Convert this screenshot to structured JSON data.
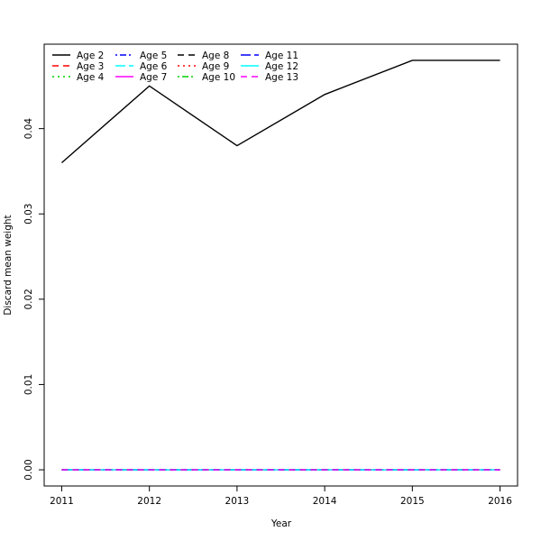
{
  "chart_data": {
    "type": "line",
    "title": "",
    "xlabel": "Year",
    "ylabel": "Discard mean weight",
    "x": [
      2011,
      2012,
      2013,
      2014,
      2015,
      2016
    ],
    "xlim": [
      2010.8,
      2016.2
    ],
    "ylim": [
      -0.0019,
      0.0499
    ],
    "xticks": [
      "2011",
      "2012",
      "2013",
      "2014",
      "2015",
      "2016"
    ],
    "yticks": [
      "0.00",
      "0.01",
      "0.02",
      "0.03",
      "0.04"
    ],
    "ytick_values": [
      0,
      0.01,
      0.02,
      0.03,
      0.04
    ],
    "grid": false,
    "legend_position": "top-left",
    "series": [
      {
        "name": "Age 2",
        "color": "#000000",
        "dash": "solid",
        "values": [
          0.036,
          0.045,
          0.038,
          0.044,
          0.048,
          0.048
        ]
      },
      {
        "name": "Age 3",
        "color": "#FF0000",
        "dash": "dashed",
        "values": [
          0,
          0,
          0,
          0,
          0,
          0
        ]
      },
      {
        "name": "Age 4",
        "color": "#00CD00",
        "dash": "dotted",
        "values": [
          0,
          0,
          0,
          0,
          0,
          0
        ]
      },
      {
        "name": "Age 5",
        "color": "#0000FF",
        "dash": "dotdash",
        "values": [
          0,
          0,
          0,
          0,
          0,
          0
        ]
      },
      {
        "name": "Age 6",
        "color": "#00FFFF",
        "dash": "longdash",
        "values": [
          0,
          0,
          0,
          0,
          0,
          0
        ]
      },
      {
        "name": "Age 7",
        "color": "#FF00FF",
        "dash": "solid",
        "values": [
          0,
          0,
          0,
          0,
          0,
          0
        ]
      },
      {
        "name": "Age 8",
        "color": "#000000",
        "dash": "dashed",
        "values": [
          0,
          0,
          0,
          0,
          0,
          0
        ]
      },
      {
        "name": "Age 9",
        "color": "#FF0000",
        "dash": "dotted",
        "values": [
          0,
          0,
          0,
          0,
          0,
          0
        ]
      },
      {
        "name": "Age 10",
        "color": "#00CD00",
        "dash": "dotdash",
        "values": [
          0,
          0,
          0,
          0,
          0,
          0
        ]
      },
      {
        "name": "Age 11",
        "color": "#0000FF",
        "dash": "longdash",
        "values": [
          0,
          0,
          0,
          0,
          0,
          0
        ]
      },
      {
        "name": "Age 12",
        "color": "#00FFFF",
        "dash": "solid",
        "values": [
          0,
          0,
          0,
          0,
          0,
          0
        ]
      },
      {
        "name": "Age 13",
        "color": "#FF00FF",
        "dash": "dashed",
        "values": [
          0,
          0,
          0,
          0,
          0,
          0
        ]
      }
    ]
  }
}
